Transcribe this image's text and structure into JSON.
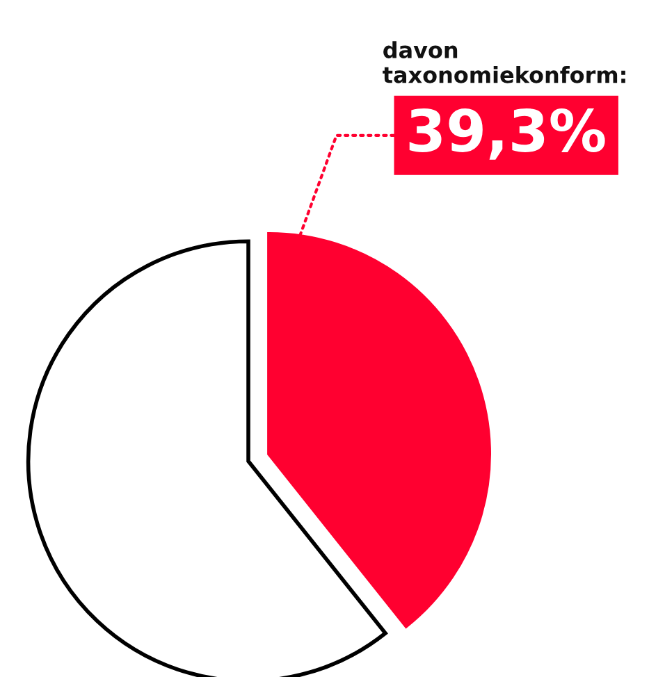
{
  "chart_data": {
    "type": "pie",
    "title": "davon taxonomiekonform:",
    "categories": [
      null,
      null
    ],
    "values": [
      39.3,
      60.7
    ],
    "colors": [
      "#ff0030",
      "#ffffff"
    ],
    "value_labels": [
      "39,3%",
      null
    ]
  }
}
